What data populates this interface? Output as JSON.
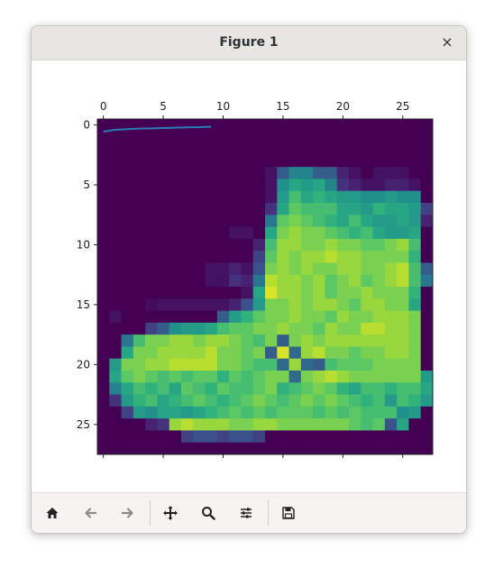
{
  "window": {
    "title": "Figure 1",
    "close_glyph": "×"
  },
  "toolbar": {
    "buttons": [
      {
        "name": "home",
        "icon": "home-icon"
      },
      {
        "name": "back",
        "icon": "back-arrow-icon"
      },
      {
        "name": "forward",
        "icon": "forward-arrow-icon"
      },
      {
        "name": "pan",
        "icon": "move-icon"
      },
      {
        "name": "zoom",
        "icon": "zoom-icon"
      },
      {
        "name": "configure",
        "icon": "sliders-icon"
      },
      {
        "name": "save",
        "icon": "save-icon"
      }
    ]
  },
  "chart_data": {
    "type": "heatmap",
    "colormap": "viridis",
    "xlim": [
      -0.5,
      27.5
    ],
    "ylim": [
      27.5,
      -0.5
    ],
    "x_ticks": [
      "0",
      "5",
      "10",
      "15",
      "20",
      "25"
    ],
    "y_ticks": [
      "0",
      "5",
      "10",
      "15",
      "20",
      "25"
    ],
    "x_axis_position": "top",
    "line_series": {
      "color": "#2a7bb0",
      "x": [
        0,
        1,
        2,
        3,
        4,
        5,
        6,
        7,
        8,
        9
      ],
      "y": [
        0.55,
        0.4,
        0.35,
        0.3,
        0.28,
        0.25,
        0.22,
        0.2,
        0.18,
        0.15
      ]
    },
    "grid": [
      [
        0,
        0,
        0,
        0,
        0,
        0,
        0,
        0,
        0,
        0,
        0,
        0,
        0,
        0,
        0,
        0,
        0,
        0,
        0,
        0,
        0,
        0,
        0,
        0,
        0,
        0,
        0,
        0
      ],
      [
        0,
        0,
        0,
        0,
        0,
        0,
        0,
        0,
        0,
        0,
        0,
        0,
        0,
        0,
        0,
        0,
        0,
        0,
        0,
        0,
        0,
        0,
        0,
        0,
        0,
        0,
        0,
        0
      ],
      [
        0,
        0,
        0,
        0,
        0,
        0,
        0,
        0,
        0,
        0,
        0,
        0,
        0,
        0,
        0,
        0,
        0,
        0,
        0,
        0,
        0,
        0,
        0,
        0,
        0,
        0,
        0,
        0
      ],
      [
        0,
        0,
        0,
        0,
        0,
        0,
        0,
        0,
        0,
        0,
        0,
        0,
        0,
        0,
        0,
        0,
        0,
        0,
        0,
        0,
        0,
        0,
        0,
        0,
        0,
        0,
        0,
        0
      ],
      [
        0,
        0,
        0,
        0,
        0,
        0,
        0,
        0,
        0,
        0,
        0,
        0,
        0,
        0,
        0.05,
        0.3,
        0.45,
        0.45,
        0.3,
        0.3,
        0.1,
        0.05,
        0,
        0.05,
        0.05,
        0.05,
        0,
        0
      ],
      [
        0,
        0,
        0,
        0,
        0,
        0,
        0,
        0,
        0,
        0,
        0,
        0,
        0,
        0,
        0.05,
        0.5,
        0.6,
        0.55,
        0.6,
        0.45,
        0.15,
        0.1,
        0.05,
        0.05,
        0.1,
        0.1,
        0.05,
        0
      ],
      [
        0,
        0,
        0,
        0,
        0,
        0,
        0,
        0,
        0,
        0,
        0,
        0,
        0,
        0,
        0.05,
        0.55,
        0.7,
        0.6,
        0.65,
        0.6,
        0.55,
        0.55,
        0.5,
        0.5,
        0.55,
        0.5,
        0.5,
        0
      ],
      [
        0,
        0,
        0,
        0,
        0,
        0,
        0,
        0,
        0,
        0,
        0,
        0,
        0,
        0,
        0.15,
        0.6,
        0.75,
        0.7,
        0.7,
        0.7,
        0.6,
        0.6,
        0.55,
        0.65,
        0.6,
        0.6,
        0.55,
        0.2
      ],
      [
        0,
        0,
        0,
        0,
        0,
        0,
        0,
        0,
        0,
        0,
        0,
        0,
        0,
        0,
        0.4,
        0.75,
        0.8,
        0.75,
        0.7,
        0.65,
        0.6,
        0.7,
        0.6,
        0.55,
        0.55,
        0.6,
        0.55,
        0.1
      ],
      [
        0,
        0,
        0,
        0,
        0,
        0,
        0,
        0,
        0,
        0,
        0,
        0.05,
        0.05,
        0,
        0.6,
        0.8,
        0.85,
        0.8,
        0.8,
        0.75,
        0.7,
        0.65,
        0.7,
        0.6,
        0.55,
        0.55,
        0.6,
        0
      ],
      [
        0,
        0,
        0,
        0,
        0,
        0,
        0,
        0,
        0,
        0,
        0,
        0,
        0,
        0.1,
        0.7,
        0.85,
        0.85,
        0.8,
        0.8,
        0.85,
        0.8,
        0.8,
        0.75,
        0.75,
        0.8,
        0.85,
        0.7,
        0
      ],
      [
        0,
        0,
        0,
        0,
        0,
        0,
        0,
        0,
        0,
        0,
        0,
        0,
        0,
        0.2,
        0.75,
        0.85,
        0.8,
        0.85,
        0.85,
        0.9,
        0.85,
        0.85,
        0.8,
        0.8,
        0.8,
        0.8,
        0.65,
        0
      ],
      [
        0,
        0,
        0,
        0,
        0,
        0,
        0,
        0,
        0,
        0.05,
        0.05,
        0.1,
        0.05,
        0.25,
        0.8,
        0.85,
        0.8,
        0.85,
        0.8,
        0.8,
        0.85,
        0.85,
        0.8,
        0.8,
        0.85,
        0.9,
        0.7,
        0.3
      ],
      [
        0,
        0,
        0,
        0,
        0,
        0,
        0,
        0,
        0,
        0.05,
        0.05,
        0.15,
        0.1,
        0.4,
        0.9,
        0.85,
        0.85,
        0.8,
        0.85,
        0.75,
        0.8,
        0.85,
        0.75,
        0.8,
        0.85,
        0.9,
        0.7,
        0.4
      ],
      [
        0,
        0,
        0,
        0,
        0,
        0,
        0,
        0,
        0,
        0,
        0,
        0,
        0.05,
        0.6,
        0.95,
        0.85,
        0.85,
        0.8,
        0.85,
        0.75,
        0.8,
        0.8,
        0.85,
        0.8,
        0.8,
        0.8,
        0.65,
        0
      ],
      [
        0,
        0,
        0,
        0,
        0.03,
        0.05,
        0.05,
        0.05,
        0.05,
        0.05,
        0.05,
        0.1,
        0.25,
        0.55,
        0.8,
        0.8,
        0.85,
        0.8,
        0.85,
        0.85,
        0.8,
        0.75,
        0.85,
        0.85,
        0.8,
        0.8,
        0.6,
        0
      ],
      [
        0,
        0.05,
        0,
        0,
        0,
        0,
        0,
        0,
        0,
        0,
        0.3,
        0.55,
        0.65,
        0.75,
        0.8,
        0.8,
        0.85,
        0.8,
        0.8,
        0.75,
        0.85,
        0.8,
        0.8,
        0.85,
        0.85,
        0.85,
        0.8,
        0
      ],
      [
        0,
        0,
        0,
        0,
        0.2,
        0.3,
        0.5,
        0.55,
        0.55,
        0.6,
        0.7,
        0.75,
        0.75,
        0.8,
        0.8,
        0.85,
        0.8,
        0.8,
        0.75,
        0.85,
        0.8,
        0.8,
        0.9,
        0.9,
        0.85,
        0.85,
        0.8,
        0
      ],
      [
        0,
        0,
        0.4,
        0.7,
        0.8,
        0.8,
        0.85,
        0.85,
        0.8,
        0.85,
        0.85,
        0.8,
        0.75,
        0.7,
        0.8,
        0.3,
        0.8,
        0.85,
        0.8,
        0.85,
        0.85,
        0.85,
        0.85,
        0.85,
        0.85,
        0.85,
        0.8,
        0
      ],
      [
        0,
        0,
        0.6,
        0.8,
        0.8,
        0.85,
        0.85,
        0.85,
        0.85,
        0.9,
        0.8,
        0.8,
        0.75,
        0.8,
        0.3,
        0.95,
        0.35,
        0.85,
        0.9,
        0.8,
        0.8,
        0.75,
        0.8,
        0.8,
        0.85,
        0.85,
        0.8,
        0
      ],
      [
        0,
        0.55,
        0.8,
        0.8,
        0.85,
        0.85,
        0.9,
        0.9,
        0.9,
        0.9,
        0.8,
        0.8,
        0.75,
        0.7,
        0.7,
        0.35,
        0.85,
        0.35,
        0.3,
        0.7,
        0.75,
        0.75,
        0.75,
        0.8,
        0.8,
        0.8,
        0.8,
        0
      ],
      [
        0,
        0.6,
        0.75,
        0.8,
        0.75,
        0.7,
        0.75,
        0.7,
        0.75,
        0.75,
        0.65,
        0.75,
        0.7,
        0.75,
        0.8,
        0.8,
        0.35,
        0.8,
        0.85,
        0.9,
        0.85,
        0.8,
        0.8,
        0.8,
        0.8,
        0.8,
        0.8,
        0.55
      ],
      [
        0,
        0.45,
        0.6,
        0.7,
        0.65,
        0.7,
        0.6,
        0.75,
        0.7,
        0.65,
        0.75,
        0.7,
        0.7,
        0.75,
        0.8,
        0.65,
        0.7,
        0.75,
        0.8,
        0.75,
        0.65,
        0.6,
        0.7,
        0.7,
        0.65,
        0.7,
        0.7,
        0.6
      ],
      [
        0,
        0.15,
        0.55,
        0.65,
        0.7,
        0.6,
        0.65,
        0.7,
        0.75,
        0.7,
        0.65,
        0.7,
        0.75,
        0.8,
        0.75,
        0.7,
        0.75,
        0.8,
        0.75,
        0.8,
        0.75,
        0.7,
        0.65,
        0.7,
        0.55,
        0.7,
        0.65,
        0.55
      ],
      [
        0,
        0,
        0.2,
        0.55,
        0.5,
        0.6,
        0.6,
        0.55,
        0.6,
        0.65,
        0.7,
        0.75,
        0.7,
        0.75,
        0.7,
        0.75,
        0.75,
        0.75,
        0.7,
        0.75,
        0.7,
        0.75,
        0.7,
        0.7,
        0.7,
        0.5,
        0.55,
        0
      ],
      [
        0,
        0,
        0,
        0,
        0.1,
        0.15,
        0.85,
        0.9,
        0.85,
        0.85,
        0.85,
        0.8,
        0.8,
        0.85,
        0.85,
        0.8,
        0.8,
        0.8,
        0.8,
        0.8,
        0.8,
        0.75,
        0.7,
        0.75,
        0.25,
        0.6,
        0,
        0
      ],
      [
        0,
        0,
        0,
        0,
        0,
        0,
        0,
        0.2,
        0.25,
        0.25,
        0.2,
        0.25,
        0.25,
        0.2,
        0,
        0,
        0,
        0,
        0,
        0,
        0,
        0,
        0,
        0,
        0,
        0,
        0,
        0
      ],
      [
        0,
        0,
        0,
        0,
        0,
        0,
        0,
        0,
        0,
        0,
        0,
        0,
        0,
        0,
        0,
        0,
        0,
        0,
        0,
        0,
        0,
        0,
        0,
        0,
        0,
        0,
        0,
        0
      ]
    ]
  }
}
